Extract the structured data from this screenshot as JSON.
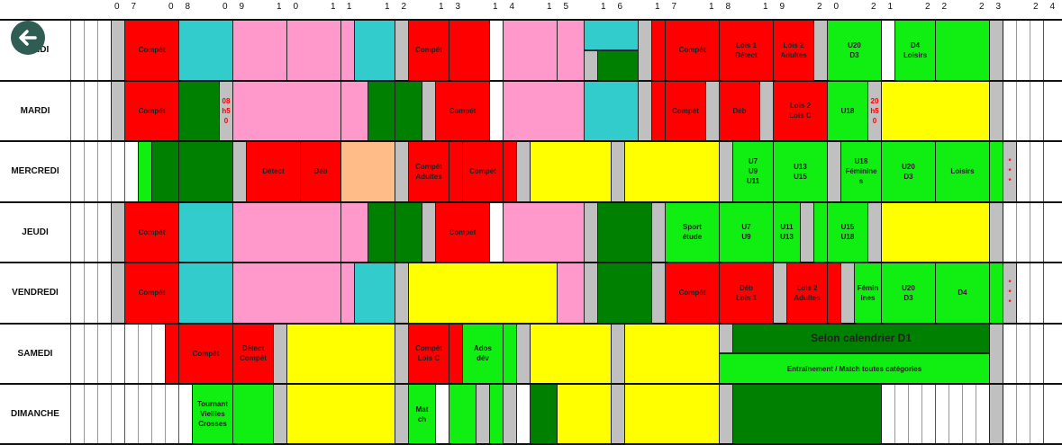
{
  "header": {
    "hours": [
      "07",
      "08",
      "09",
      "10",
      "11",
      "12",
      "13",
      "14",
      "15",
      "16",
      "17",
      "18",
      "19",
      "20",
      "21",
      "22",
      "23",
      "24"
    ]
  },
  "schedule": [
    {
      "day": "LUNDI",
      "labels": [
        "Compét",
        "Compét",
        "Compét",
        "Lois 1\nDétect",
        "Lois 2\nAdultes",
        "U20\nD3",
        "D4\nLoisirs"
      ]
    },
    {
      "day": "MARDI",
      "labels": [
        "Compét",
        "08\nh5\n0",
        "Compét",
        "Compét",
        "Déb",
        "Lois 2\nLois C",
        "U18",
        "20\nh5\n0"
      ]
    },
    {
      "day": "MERCREDI",
      "labels": [
        "Détect",
        "Déb",
        "Compét\nAdultes",
        "Compét",
        "U7\nU9\nU11",
        "U13\nU15",
        "U18\nFéminine\ns",
        "U20\nD3",
        "Loisirs",
        "*\n*\n*"
      ]
    },
    {
      "day": "JEUDI",
      "labels": [
        "Compét",
        "Compét",
        "Sport\nétude",
        "U7\nU9",
        "U11\nU13",
        "U15\nU18"
      ]
    },
    {
      "day": "VENDREDI",
      "labels": [
        "Compét",
        "Compét",
        "Déb\nLois 1",
        "Lois 2\nAdultes",
        "Fémin\nines",
        "U20\nD3",
        "D4",
        "*\n*\n*"
      ]
    },
    {
      "day": "SAMEDI",
      "labels": [
        "Compét",
        "Détect\nCompét",
        "Compét\nLois C",
        "Ados\ndév",
        "Selon calendrier D1",
        "Entraînement / Match toutes catégories"
      ]
    },
    {
      "day": "DIMANCHE",
      "labels": [
        "Tournant\nVieilles\nCrosses",
        "Mat\nch"
      ]
    }
  ]
}
